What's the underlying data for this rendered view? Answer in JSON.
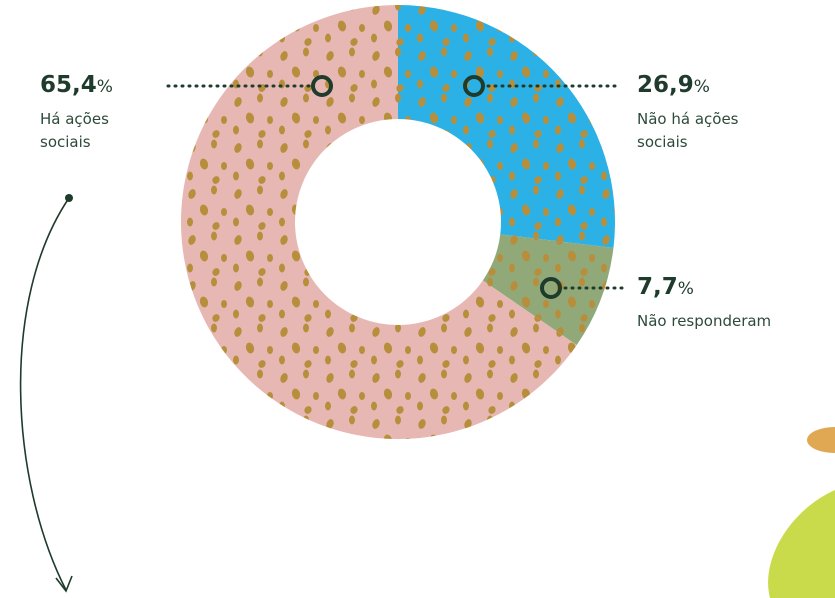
{
  "chart_data": {
    "type": "pie",
    "donut": true,
    "categories": [
      "Há ações sociais",
      "Não há ações sociais",
      "Não responderam"
    ],
    "values": [
      65.4,
      26.9,
      7.7
    ],
    "value_labels": [
      "65,4",
      "26,9",
      "7,7"
    ],
    "unit": "%",
    "colors": [
      "#e7b8b3",
      "#2bb1e5",
      "#91a978"
    ]
  }
}
